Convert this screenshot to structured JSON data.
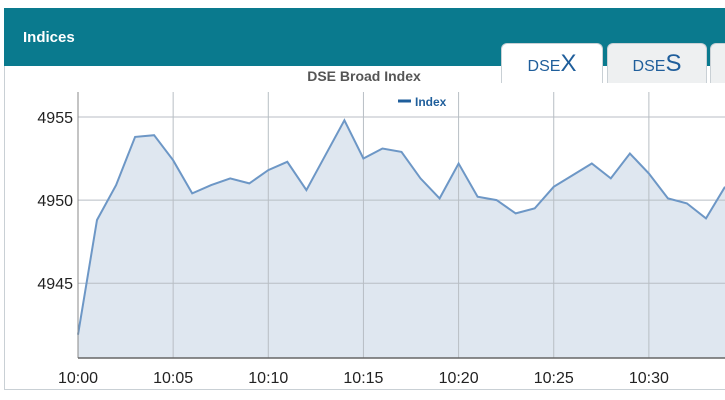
{
  "header": {
    "title": "Indices"
  },
  "tabs": [
    {
      "prefix": "DSE",
      "suffix": "X",
      "active": true
    },
    {
      "prefix": "DSE",
      "suffix": "S",
      "active": false
    }
  ],
  "chart_data": {
    "type": "area",
    "title": "DSE Broad Index",
    "legend": {
      "label": "Index",
      "placement": "top-center"
    },
    "colors": {
      "line": "#6d97c6",
      "fill": "#dfe7f0",
      "grid": "#b8bec4",
      "text": "#555555"
    },
    "xlim": [
      "10:00",
      "10:34"
    ],
    "ylim": [
      4940.5,
      4956.5
    ],
    "y_ticks": [
      4945,
      4950,
      4955
    ],
    "x_ticks": [
      "10:00",
      "10:05",
      "10:10",
      "10:15",
      "10:20",
      "10:25",
      "10:30"
    ],
    "grid": true,
    "series": [
      {
        "name": "Index",
        "points": [
          [
            "10:00",
            4941.9
          ],
          [
            "10:01",
            4948.8
          ],
          [
            "10:02",
            4950.9
          ],
          [
            "10:03",
            4953.8
          ],
          [
            "10:04",
            4953.9
          ],
          [
            "10:05",
            4952.4
          ],
          [
            "10:06",
            4950.4
          ],
          [
            "10:07",
            4950.9
          ],
          [
            "10:08",
            4951.3
          ],
          [
            "10:09",
            4951.0
          ],
          [
            "10:10",
            4951.8
          ],
          [
            "10:11",
            4952.3
          ],
          [
            "10:12",
            4950.6
          ],
          [
            "10:13",
            4952.7
          ],
          [
            "10:14",
            4954.8
          ],
          [
            "10:15",
            4952.5
          ],
          [
            "10:16",
            4953.1
          ],
          [
            "10:17",
            4952.9
          ],
          [
            "10:18",
            4951.3
          ],
          [
            "10:19",
            4950.1
          ],
          [
            "10:20",
            4952.2
          ],
          [
            "10:21",
            4950.2
          ],
          [
            "10:22",
            4950.0
          ],
          [
            "10:23",
            4949.2
          ],
          [
            "10:24",
            4949.5
          ],
          [
            "10:25",
            4950.8
          ],
          [
            "10:26",
            4951.5
          ],
          [
            "10:27",
            4952.2
          ],
          [
            "10:28",
            4951.3
          ],
          [
            "10:29",
            4952.8
          ],
          [
            "10:30",
            4951.6
          ],
          [
            "10:31",
            4950.1
          ],
          [
            "10:32",
            4949.8
          ],
          [
            "10:33",
            4948.9
          ],
          [
            "10:34",
            4950.8
          ]
        ]
      }
    ]
  }
}
